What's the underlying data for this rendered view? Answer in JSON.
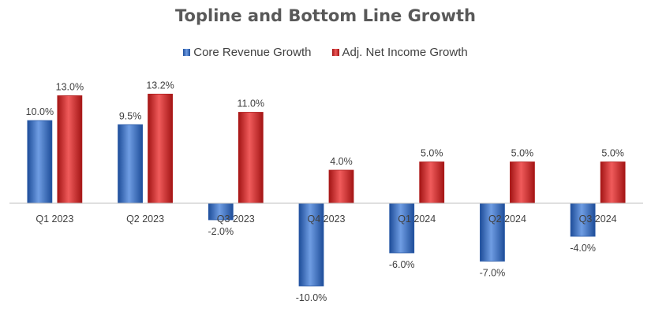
{
  "chart_data": {
    "type": "bar",
    "title": "Topline and Bottom Line Growth",
    "categories": [
      "Q1 2023",
      "Q2 2023",
      "Q3 2023",
      "Q4 2023",
      "Q1 2024",
      "Q2 2024",
      "Q3 2024"
    ],
    "series": [
      {
        "name": "Core Revenue Growth",
        "values": [
          10.0,
          9.5,
          -2.0,
          -10.0,
          -6.0,
          -7.0,
          -4.0
        ],
        "labels": [
          "10.0%",
          "9.5%",
          "-2.0%",
          "-10.0%",
          "-6.0%",
          "-7.0%",
          "-4.0%"
        ],
        "color": "#3a6fc4"
      },
      {
        "name": "Adj. Net Income Growth",
        "values": [
          13.0,
          13.2,
          11.0,
          4.0,
          5.0,
          5.0,
          5.0
        ],
        "labels": [
          "13.0%",
          "13.2%",
          "11.0%",
          "4.0%",
          "5.0%",
          "5.0%",
          "5.0%"
        ],
        "color": "#d42a2a"
      }
    ],
    "legend_position": "top",
    "grid": false,
    "ylim": [
      -12,
      15
    ]
  }
}
